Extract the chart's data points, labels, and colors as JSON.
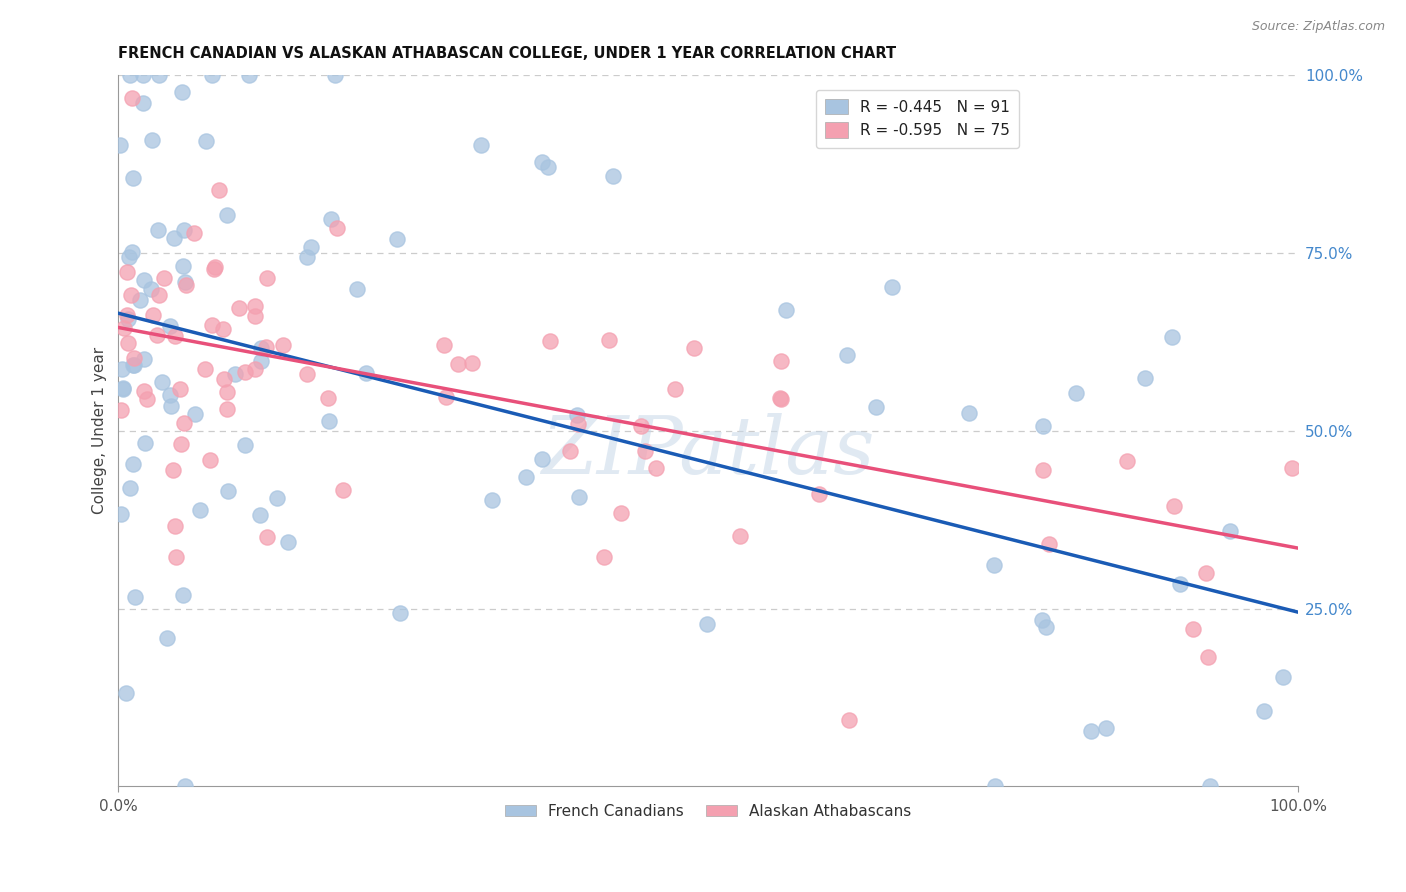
{
  "title": "FRENCH CANADIAN VS ALASKAN ATHABASCAN COLLEGE, UNDER 1 YEAR CORRELATION CHART",
  "source": "Source: ZipAtlas.com",
  "ylabel": "College, Under 1 year",
  "right_yticks": [
    "100.0%",
    "75.0%",
    "50.0%",
    "25.0%"
  ],
  "right_ytick_vals": [
    1.0,
    0.75,
    0.5,
    0.25
  ],
  "legend_blue_label": "R = -0.445   N = 91",
  "legend_pink_label": "R = -0.595   N = 75",
  "legend_series": [
    "French Canadians",
    "Alaskan Athabascans"
  ],
  "blue_color": "#a8c4e0",
  "pink_color": "#f4a0b0",
  "blue_line_color": "#1a5bb5",
  "pink_line_color": "#e8507a",
  "blue_R": -0.445,
  "pink_R": -0.595,
  "blue_N": 91,
  "pink_N": 75,
  "watermark": "ZIPatlas",
  "background_color": "#ffffff",
  "grid_color": "#cccccc",
  "blue_intercept": 0.665,
  "blue_slope": -0.42,
  "pink_intercept": 0.645,
  "pink_slope": -0.31
}
